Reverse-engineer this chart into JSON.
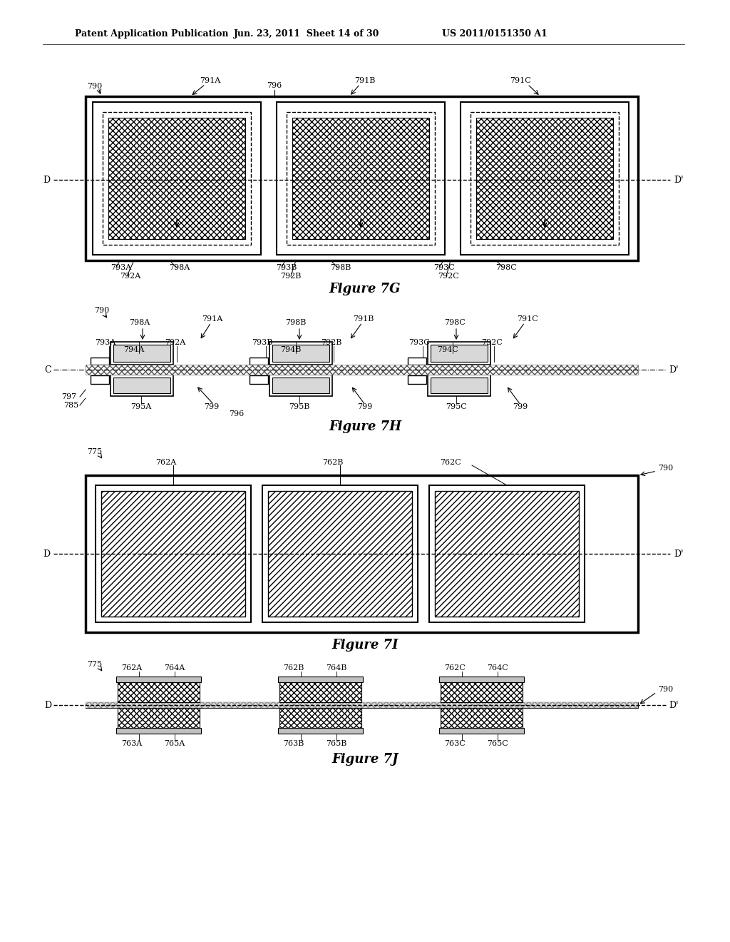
{
  "bg_color": "#ffffff",
  "header_left": "Patent Application Publication",
  "header_mid": "Jun. 23, 2011  Sheet 14 of 30",
  "header_right": "US 2011/0151350 A1",
  "fig7G_title": "Figure 7G",
  "fig7H_title": "Figure 7H",
  "fig7I_title": "Figure 7I",
  "fig7J_title": "Figure 7J"
}
